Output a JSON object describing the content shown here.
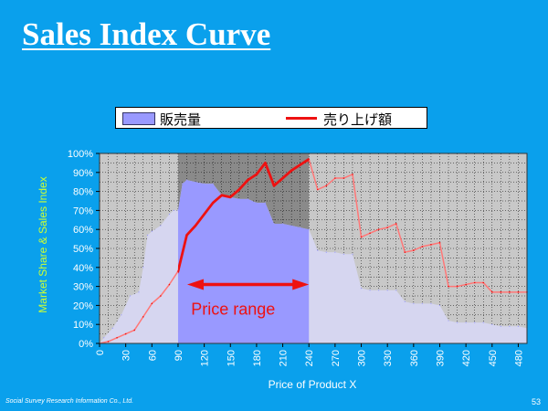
{
  "slide": {
    "title": "Sales Index Curve",
    "footer_credit": "Social Survey Research Information Co., Ltd.",
    "page_number": "53"
  },
  "colors": {
    "background": "#0aa0ec",
    "plot_bg": "#c8c8c8",
    "area_full": "#d6d6f0",
    "area_highlight": "#9999ff",
    "highlight_band": "#8a8a8a",
    "line_full": "#ff7777",
    "line_highlight": "#ee1111",
    "arrow": "#ee1111",
    "ylabel": "#ccff33"
  },
  "chart_data": {
    "type": "area+line",
    "xlabel": "Price of Product X",
    "ylabel": "Market Share & Sales Index",
    "xlim": [
      0,
      490
    ],
    "ylim": [
      0,
      100
    ],
    "x_ticks": [
      0,
      30,
      60,
      90,
      120,
      150,
      180,
      210,
      240,
      270,
      300,
      330,
      360,
      390,
      420,
      450,
      480
    ],
    "y_ticks": [
      0,
      10,
      20,
      30,
      40,
      50,
      60,
      70,
      80,
      90,
      100
    ],
    "y_tick_labels": [
      "0%",
      "10%",
      "20%",
      "30%",
      "40%",
      "50%",
      "60%",
      "70%",
      "80%",
      "90%",
      "100%"
    ],
    "grid": true,
    "legend_position": "top",
    "highlight_range": [
      90,
      240
    ],
    "series": [
      {
        "name": "販売量",
        "kind": "area",
        "x": [
          0,
          5,
          15,
          25,
          35,
          45,
          50,
          55,
          60,
          70,
          80,
          85,
          90,
          95,
          100,
          110,
          120,
          130,
          140,
          150,
          160,
          170,
          180,
          190,
          200,
          210,
          220,
          230,
          240,
          250,
          260,
          270,
          280,
          290,
          300,
          310,
          320,
          330,
          340,
          350,
          360,
          370,
          380,
          390,
          400,
          410,
          420,
          430,
          440,
          450,
          460,
          470,
          480,
          490
        ],
        "values": [
          0,
          3,
          8,
          15,
          25,
          27,
          40,
          57,
          59,
          62,
          68,
          70,
          70,
          84,
          86,
          85,
          84,
          84,
          78,
          77,
          76,
          76,
          74,
          74,
          63,
          63,
          62,
          61,
          60,
          49,
          48,
          48,
          47,
          47,
          29,
          28,
          28,
          28,
          28,
          22,
          21,
          21,
          21,
          20,
          12,
          11,
          11,
          11,
          11,
          10,
          9,
          9,
          9,
          8
        ]
      },
      {
        "name": "売り上げ額",
        "kind": "line",
        "x": [
          0,
          10,
          20,
          30,
          40,
          50,
          60,
          70,
          80,
          90,
          100,
          110,
          120,
          130,
          140,
          150,
          160,
          170,
          180,
          190,
          200,
          210,
          220,
          230,
          240,
          250,
          260,
          270,
          280,
          290,
          300,
          310,
          320,
          330,
          340,
          350,
          360,
          370,
          380,
          390,
          400,
          410,
          420,
          430,
          440,
          450,
          460,
          470,
          480,
          490
        ],
        "values": [
          0,
          1,
          3,
          5,
          7,
          14,
          21,
          25,
          31,
          38,
          57,
          62,
          68,
          74,
          78,
          77,
          81,
          86,
          89,
          95,
          83,
          87,
          91,
          94,
          97,
          81,
          83,
          87,
          87,
          89,
          56,
          58,
          60,
          61,
          63,
          48,
          49,
          51,
          52,
          53,
          30,
          30,
          31,
          32,
          32,
          27,
          27,
          27,
          27,
          27
        ]
      }
    ],
    "annotations": [
      {
        "text": "Price range",
        "x": 150,
        "y": 16,
        "arrow_from": 90,
        "arrow_to": 240,
        "arrow_y": 31
      }
    ]
  }
}
